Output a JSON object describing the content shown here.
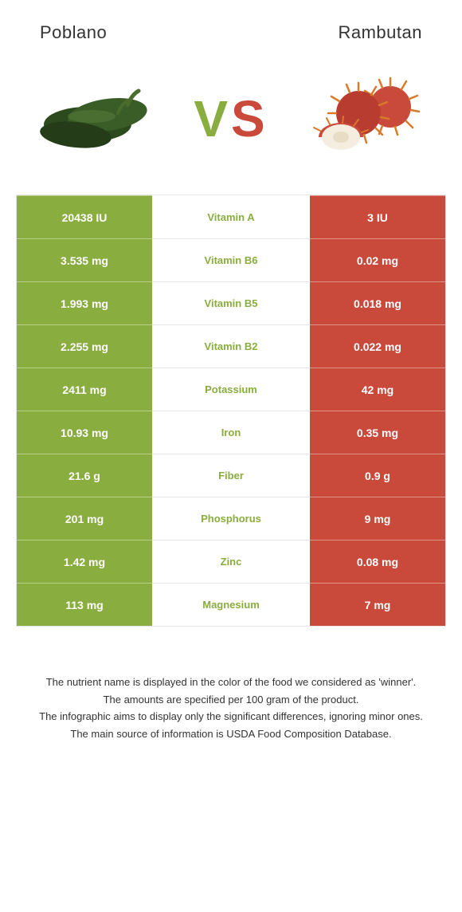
{
  "header": {
    "left": "Poblano",
    "right": "Rambutan"
  },
  "vs": {
    "v_text": "V",
    "s_text": "S",
    "v_color": "#8aad3f",
    "s_color": "#c94a3b"
  },
  "colors": {
    "left_bg": "#8aad3f",
    "right_bg": "#c94a3b",
    "mid_bg": "#ffffff",
    "nutrient_winner_left": "#8aad3f",
    "nutrient_winner_right": "#c94a3b",
    "row_border": "#e6e6e6"
  },
  "rows": [
    {
      "left": "20438 IU",
      "nutrient": "Vitamin A",
      "right": "3 IU",
      "winner": "left"
    },
    {
      "left": "3.535 mg",
      "nutrient": "Vitamin B6",
      "right": "0.02 mg",
      "winner": "left"
    },
    {
      "left": "1.993 mg",
      "nutrient": "Vitamin B5",
      "right": "0.018 mg",
      "winner": "left"
    },
    {
      "left": "2.255 mg",
      "nutrient": "Vitamin B2",
      "right": "0.022 mg",
      "winner": "left"
    },
    {
      "left": "2411 mg",
      "nutrient": "Potassium",
      "right": "42 mg",
      "winner": "left"
    },
    {
      "left": "10.93 mg",
      "nutrient": "Iron",
      "right": "0.35 mg",
      "winner": "left"
    },
    {
      "left": "21.6 g",
      "nutrient": "Fiber",
      "right": "0.9 g",
      "winner": "left"
    },
    {
      "left": "201 mg",
      "nutrient": "Phosphorus",
      "right": "9 mg",
      "winner": "left"
    },
    {
      "left": "1.42 mg",
      "nutrient": "Zinc",
      "right": "0.08 mg",
      "winner": "left"
    },
    {
      "left": "113 mg",
      "nutrient": "Magnesium",
      "right": "7 mg",
      "winner": "left"
    }
  ],
  "footnotes": [
    "The nutrient name is displayed in the color of the food we considered as 'winner'.",
    "The amounts are specified per 100 gram of the product.",
    "The infographic aims to display only the significant differences, ignoring minor ones.",
    "The main source of information is USDA Food Composition Database."
  ]
}
